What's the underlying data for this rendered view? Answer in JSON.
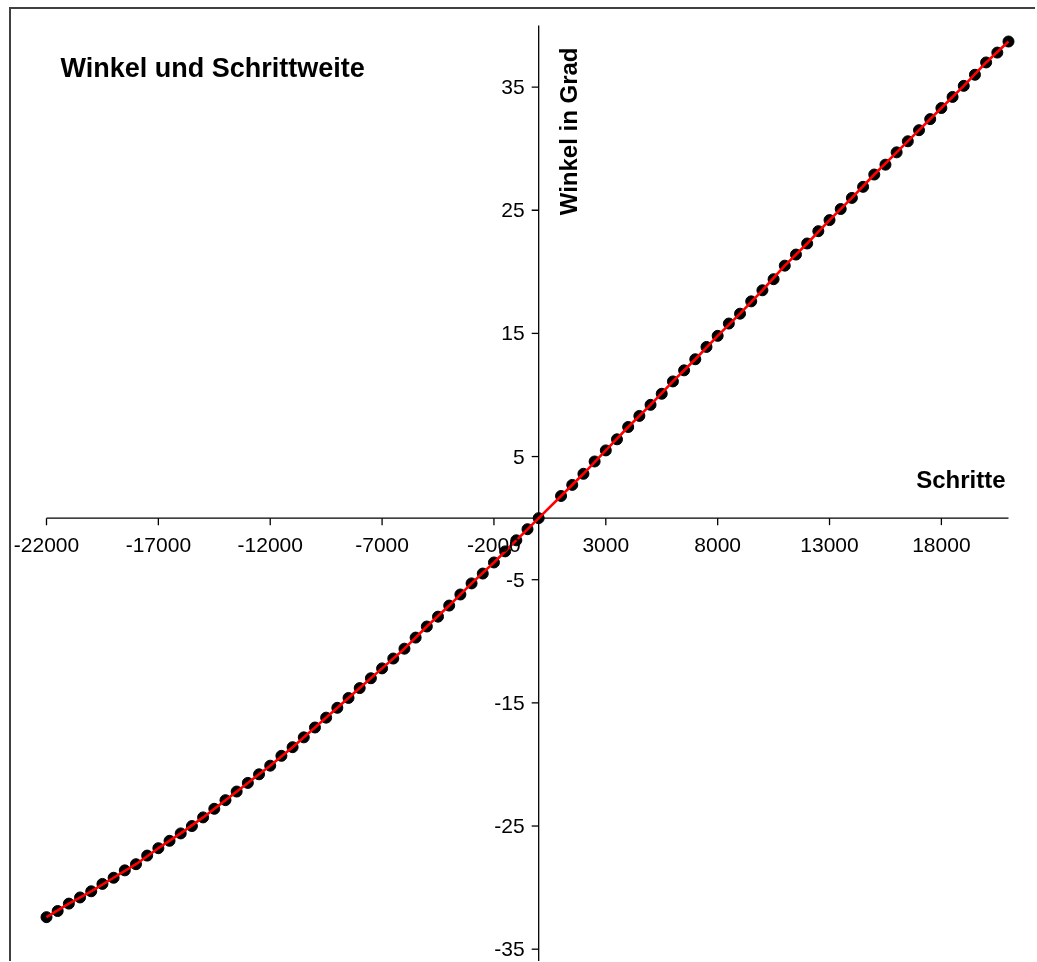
{
  "chart_data": {
    "type": "scatter",
    "title": "Winkel und Schrittweite",
    "xlabel": "Schritte",
    "ylabel": "Winkel in Grad",
    "xlim": [
      -22000,
      21000
    ],
    "ylim": [
      -36,
      40
    ],
    "xticks": [
      -22000,
      -17000,
      -12000,
      -7000,
      -2000,
      3000,
      8000,
      13000,
      18000
    ],
    "yticks": [
      -35,
      -25,
      -15,
      -5,
      5,
      15,
      25,
      35
    ],
    "grid": false,
    "series": [
      {
        "marker": "circle",
        "color": "#000000",
        "x": [
          -22000,
          -21500,
          -21000,
          -20500,
          -20000,
          -19500,
          -19000,
          -18500,
          -18000,
          -17500,
          -17000,
          -16500,
          -16000,
          -15500,
          -15000,
          -14500,
          -14000,
          -13500,
          -13000,
          -12500,
          -12000,
          -11500,
          -11000,
          -10500,
          -10000,
          -9500,
          -9000,
          -8500,
          -8000,
          -7500,
          -7000,
          -6500,
          -6000,
          -5500,
          -5000,
          -4500,
          -4000,
          -3500,
          -3000,
          -2500,
          -2000,
          -1500,
          -1000,
          -500,
          0,
          1000,
          1500,
          2000,
          2500,
          3000,
          3500,
          4000,
          4500,
          5000,
          5500,
          6000,
          6500,
          7000,
          7500,
          8000,
          8500,
          9000,
          9500,
          10000,
          10500,
          11000,
          11500,
          12000,
          12500,
          13000,
          13500,
          14000,
          14500,
          15000,
          15500,
          16000,
          16500,
          17000,
          17500,
          18000,
          18500,
          19000,
          19500,
          20000,
          20500,
          21000
        ],
        "values": [
          -32.4,
          -31.9,
          -31.3,
          -30.8,
          -30.3,
          -29.7,
          -29.2,
          -28.6,
          -28.1,
          -27.4,
          -26.8,
          -26.2,
          -25.6,
          -25.0,
          -24.3,
          -23.6,
          -22.9,
          -22.2,
          -21.5,
          -20.8,
          -20.1,
          -19.3,
          -18.6,
          -17.8,
          -17.0,
          -16.2,
          -15.4,
          -14.6,
          -13.8,
          -13.0,
          -12.2,
          -11.4,
          -10.6,
          -9.7,
          -8.8,
          -8.0,
          -7.1,
          -6.2,
          -5.3,
          -4.5,
          -3.6,
          -2.7,
          -1.8,
          -0.9,
          0,
          1.8,
          2.7,
          3.6,
          4.6,
          5.5,
          6.4,
          7.4,
          8.3,
          9.2,
          10.1,
          11.1,
          12.0,
          12.9,
          13.9,
          14.8,
          15.8,
          16.6,
          17.6,
          18.5,
          19.4,
          20.5,
          21.4,
          22.3,
          23.3,
          24.2,
          25.1,
          26.0,
          26.9,
          27.9,
          28.7,
          29.7,
          30.6,
          31.5,
          32.4,
          33.3,
          34.2,
          35.1,
          36.0,
          37.0,
          37.8,
          38.7
        ]
      },
      {
        "type": "line",
        "color": "#ff0000",
        "x": [
          -22000,
          -21000,
          -20000,
          -19000,
          -18000,
          -17000,
          -16000,
          -15000,
          -14000,
          -13000,
          -12000,
          -11000,
          -10000,
          -9000,
          -8000,
          -7000,
          -6000,
          -5000,
          -4000,
          -3000,
          -2000,
          -1000,
          0,
          1000,
          2000,
          3000,
          4000,
          5000,
          6000,
          7000,
          8000,
          9000,
          10000,
          11000,
          12000,
          13000,
          14000,
          15000,
          16000,
          17000,
          18000,
          19000,
          20000,
          21000
        ],
        "values": [
          -32.4,
          -31.3,
          -30.3,
          -29.2,
          -28.1,
          -26.8,
          -25.6,
          -24.3,
          -22.9,
          -21.5,
          -20.1,
          -18.6,
          -17.0,
          -15.4,
          -13.8,
          -12.2,
          -10.6,
          -8.8,
          -7.1,
          -5.3,
          -3.6,
          -1.8,
          0,
          1.8,
          3.6,
          5.5,
          7.4,
          9.2,
          11.1,
          12.9,
          14.8,
          16.6,
          18.5,
          20.5,
          22.3,
          24.2,
          26.0,
          27.9,
          29.7,
          31.5,
          33.3,
          35.1,
          37.0,
          38.7
        ]
      }
    ]
  }
}
